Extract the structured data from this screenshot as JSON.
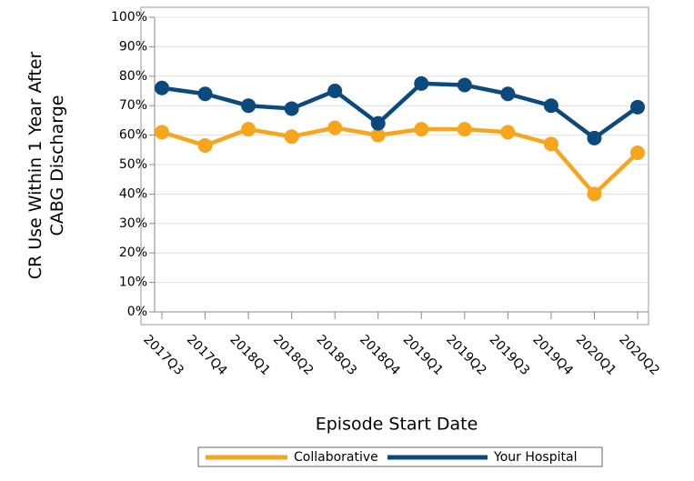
{
  "chart_data": {
    "type": "line",
    "x_label": "Episode Start Date",
    "y_label": [
      "CR Use Within 1 Year After",
      "CABG Discharge"
    ],
    "categories": [
      "2017Q3",
      "2017Q4",
      "2018Q1",
      "2018Q2",
      "2018Q3",
      "2018Q4",
      "2019Q1",
      "2019Q2",
      "2019Q3",
      "2019Q4",
      "2020Q1",
      "2020Q2"
    ],
    "series": [
      {
        "name": "Collaborative",
        "color": "#f7a51c",
        "values": [
          61,
          56.5,
          62,
          59.5,
          62.5,
          60,
          62,
          62,
          61,
          57,
          40,
          54
        ]
      },
      {
        "name": "Your Hospital",
        "color": "#0c4a7d",
        "values": [
          76,
          74,
          70,
          69,
          75,
          64,
          77.5,
          77,
          74,
          70,
          59,
          69.5
        ]
      }
    ],
    "ylim": [
      0,
      100
    ],
    "yticks": [
      {
        "value": 0,
        "label": "0%"
      },
      {
        "value": 10,
        "label": "10%"
      },
      {
        "value": 20,
        "label": "20%"
      },
      {
        "value": 30,
        "label": "30%"
      },
      {
        "value": 40,
        "label": "40%"
      },
      {
        "value": 50,
        "label": "50%"
      },
      {
        "value": 60,
        "label": "60%"
      },
      {
        "value": 70,
        "label": "70%"
      },
      {
        "value": 80,
        "label": "80%"
      },
      {
        "value": 90,
        "label": "90%"
      },
      {
        "value": 100,
        "label": "100%"
      }
    ],
    "grid": true,
    "legend": "bottom"
  }
}
